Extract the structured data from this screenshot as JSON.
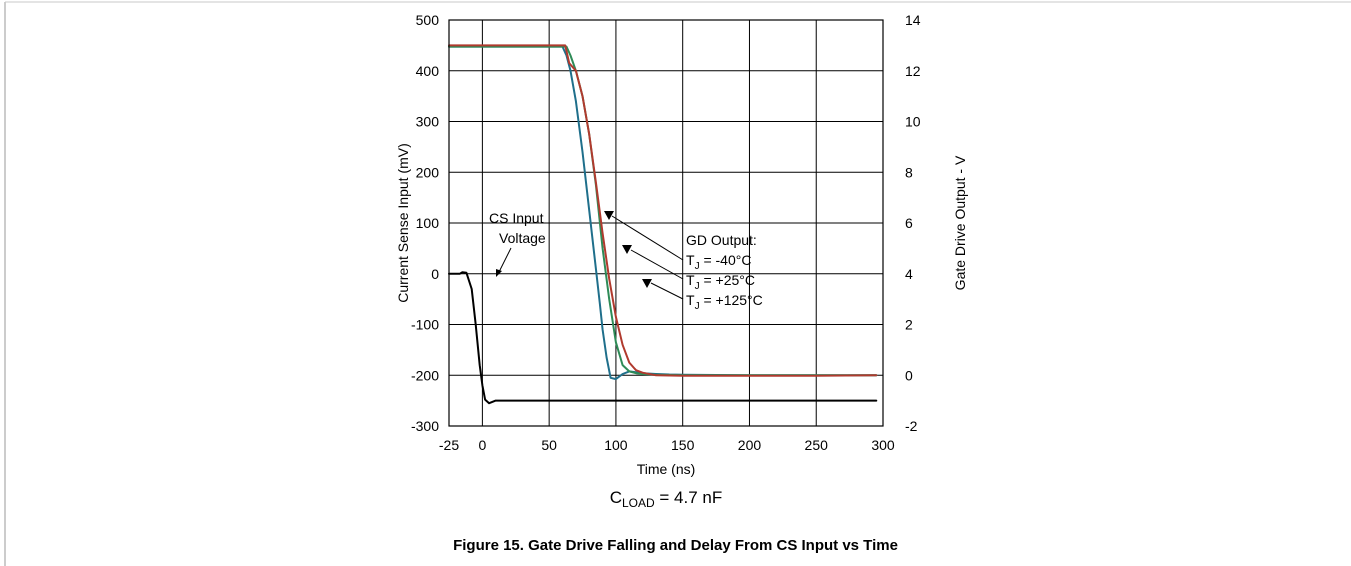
{
  "figure_caption": "Figure 15. Gate Drive Falling and Delay From CS Input vs Time",
  "load_note": {
    "prefix": "C",
    "subscript": "LOAD",
    "value": " = 4.7 nF"
  },
  "chart_data": {
    "type": "line",
    "title": "",
    "xlabel": "Time (ns)",
    "ylabel": "Current Sense Input (mV)",
    "y2label": "Gate Drive Output - V",
    "xlim": [
      -25,
      300
    ],
    "ylim": [
      -300,
      500
    ],
    "y2lim": [
      -2,
      14
    ],
    "x_ticks": [
      "-25",
      "0",
      "50",
      "100",
      "150",
      "200",
      "250",
      "300"
    ],
    "x_tick_values": [
      -25,
      0,
      50,
      100,
      150,
      200,
      250,
      300
    ],
    "y_ticks": [
      "500",
      "400",
      "300",
      "200",
      "100",
      "0",
      "-100",
      "-200",
      "-300"
    ],
    "y_tick_values": [
      500,
      400,
      300,
      200,
      100,
      0,
      -100,
      -200,
      -300
    ],
    "y2_ticks": [
      "14",
      "12",
      "10",
      "8",
      "6",
      "4",
      "2",
      "0",
      "-2"
    ],
    "y2_tick_values": [
      14,
      12,
      10,
      8,
      6,
      4,
      2,
      0,
      -2
    ],
    "grid": true,
    "series": [
      {
        "key": "cs",
        "color": "#000000",
        "axis": "left",
        "x": [
          -25,
          -17,
          -15,
          -12,
          -8,
          -5,
          -2,
          0,
          2,
          5,
          10,
          50,
          100,
          150,
          200,
          250,
          295
        ],
        "y": [
          0,
          0,
          3,
          2,
          -30,
          -100,
          -180,
          -220,
          -248,
          -255,
          -250,
          -250,
          -250,
          -250,
          -250,
          -250,
          -250
        ]
      },
      {
        "key": "gd-minus40",
        "color": "#1f6f8b",
        "axis": "right",
        "x": [
          -25,
          0,
          50,
          60,
          63,
          66,
          70,
          75,
          80,
          85,
          88,
          90,
          93,
          96,
          100,
          105,
          110,
          115,
          120,
          130,
          140,
          150,
          200,
          250,
          295
        ],
        "y": [
          12.95,
          12.95,
          12.95,
          12.95,
          12.6,
          12.0,
          10.8,
          8.8,
          6.5,
          4.2,
          2.8,
          1.8,
          0.7,
          -0.1,
          -0.15,
          0.05,
          0.15,
          0.12,
          0.08,
          0.05,
          0.03,
          0.02,
          0.0,
          0.0,
          0.0
        ]
      },
      {
        "key": "gd-25",
        "color": "#2e8b57",
        "axis": "right",
        "x": [
          -25,
          50,
          60,
          63,
          66,
          70,
          75,
          80,
          85,
          90,
          95,
          100,
          105,
          110,
          115,
          120,
          130,
          150,
          200,
          250,
          295
        ],
        "y": [
          12.95,
          12.95,
          12.95,
          12.95,
          12.6,
          12.0,
          11.0,
          9.5,
          7.5,
          5.0,
          3.0,
          1.3,
          0.4,
          0.15,
          0.08,
          0.05,
          0.02,
          0.0,
          0.0,
          0.0,
          0.0
        ]
      },
      {
        "key": "gd-125",
        "color": "#b03a2e",
        "axis": "right",
        "x": [
          -25,
          50,
          60,
          62,
          65,
          70,
          75,
          80,
          85,
          90,
          95,
          100,
          105,
          110,
          115,
          120,
          130,
          150,
          200,
          250,
          295
        ],
        "y": [
          13.0,
          13.0,
          13.0,
          13.0,
          12.3,
          12.0,
          11.0,
          9.5,
          7.6,
          5.6,
          3.8,
          2.3,
          1.2,
          0.5,
          0.2,
          0.1,
          0.0,
          -0.02,
          -0.02,
          -0.02,
          0.0
        ]
      }
    ],
    "annotations": {
      "cs_input": [
        "CS Input",
        "Voltage"
      ],
      "gd_output": "GD Output:",
      "tj_prefix": "T",
      "tj_sub": "J",
      "tj_values": [
        " = -40°C",
        " = +25°C",
        " = +125°C"
      ]
    }
  }
}
